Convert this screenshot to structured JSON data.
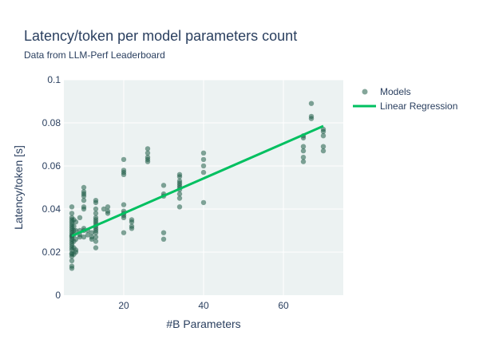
{
  "chart_data": {
    "type": "scatter",
    "title": "Latency/token per model parameters count",
    "subtitle": "Data from LLM-Perf Leaderboard",
    "xlabel": "#B Parameters",
    "ylabel": "Latency/token [s]",
    "xlim": [
      5,
      75
    ],
    "ylim": [
      0,
      0.1
    ],
    "x_ticks": [
      20,
      40,
      60
    ],
    "y_ticks": [
      0,
      0.02,
      0.04,
      0.06,
      0.08,
      0.1
    ],
    "x_tick_labels": [
      "20",
      "40",
      "60"
    ],
    "y_tick_labels": [
      "0",
      "0.02",
      "0.04",
      "0.06",
      "0.08",
      "0.1"
    ],
    "legend_position": "top-right",
    "grid": true,
    "colors": {
      "plot_bg": "#ecf2f2",
      "grid": "#ffffff",
      "models": "#1f5c47",
      "regression": "#00c060"
    },
    "series": [
      {
        "name": "Models",
        "kind": "markers",
        "points": [
          [
            7,
            0.0125
          ],
          [
            7,
            0.0135
          ],
          [
            7,
            0.016
          ],
          [
            7,
            0.018
          ],
          [
            7,
            0.019
          ],
          [
            7,
            0.0195
          ],
          [
            7,
            0.021
          ],
          [
            7,
            0.022
          ],
          [
            7,
            0.023
          ],
          [
            7,
            0.024
          ],
          [
            7,
            0.025
          ],
          [
            7,
            0.026
          ],
          [
            7,
            0.027
          ],
          [
            7,
            0.0275
          ],
          [
            7,
            0.028
          ],
          [
            7,
            0.029
          ],
          [
            7,
            0.03
          ],
          [
            7,
            0.031
          ],
          [
            7,
            0.032
          ],
          [
            7,
            0.033
          ],
          [
            7,
            0.034
          ],
          [
            7,
            0.035
          ],
          [
            7,
            0.036
          ],
          [
            7,
            0.038
          ],
          [
            7,
            0.041
          ],
          [
            7.5,
            0.019
          ],
          [
            7.5,
            0.022
          ],
          [
            7.5,
            0.025
          ],
          [
            7.5,
            0.028
          ],
          [
            7.5,
            0.03
          ],
          [
            7.5,
            0.032
          ],
          [
            7.5,
            0.035
          ],
          [
            8,
            0.02
          ],
          [
            8,
            0.021
          ],
          [
            8,
            0.026
          ],
          [
            8,
            0.03
          ],
          [
            8,
            0.034
          ],
          [
            9,
            0.027
          ],
          [
            9,
            0.028
          ],
          [
            9,
            0.03
          ],
          [
            9,
            0.036
          ],
          [
            10,
            0.027
          ],
          [
            10,
            0.03
          ],
          [
            10,
            0.031
          ],
          [
            10,
            0.04
          ],
          [
            10,
            0.041
          ],
          [
            10,
            0.044
          ],
          [
            10,
            0.046
          ],
          [
            10,
            0.047
          ],
          [
            10,
            0.048
          ],
          [
            10,
            0.05
          ],
          [
            11,
            0.028
          ],
          [
            11,
            0.03
          ],
          [
            12,
            0.026
          ],
          [
            12,
            0.027
          ],
          [
            12,
            0.029
          ],
          [
            13,
            0.022
          ],
          [
            13,
            0.025
          ],
          [
            13,
            0.027
          ],
          [
            13,
            0.029
          ],
          [
            13,
            0.03
          ],
          [
            13,
            0.031
          ],
          [
            13,
            0.032
          ],
          [
            13,
            0.033
          ],
          [
            13,
            0.034
          ],
          [
            13,
            0.035
          ],
          [
            13,
            0.036
          ],
          [
            13,
            0.038
          ],
          [
            13,
            0.04
          ],
          [
            13,
            0.043
          ],
          [
            13,
            0.044
          ],
          [
            15,
            0.04
          ],
          [
            16,
            0.038
          ],
          [
            16,
            0.039
          ],
          [
            16,
            0.041
          ],
          [
            20,
            0.029
          ],
          [
            20,
            0.036
          ],
          [
            20,
            0.037
          ],
          [
            20,
            0.038
          ],
          [
            20,
            0.039
          ],
          [
            20,
            0.042
          ],
          [
            20,
            0.056
          ],
          [
            20,
            0.057
          ],
          [
            20,
            0.058
          ],
          [
            20,
            0.063
          ],
          [
            22,
            0.031
          ],
          [
            22,
            0.032
          ],
          [
            22,
            0.034
          ],
          [
            22,
            0.035
          ],
          [
            26,
            0.062
          ],
          [
            26,
            0.063
          ],
          [
            26,
            0.064
          ],
          [
            26,
            0.066
          ],
          [
            26,
            0.068
          ],
          [
            30,
            0.026
          ],
          [
            30,
            0.029
          ],
          [
            30,
            0.046
          ],
          [
            30,
            0.047
          ],
          [
            30,
            0.051
          ],
          [
            34,
            0.041
          ],
          [
            34,
            0.045
          ],
          [
            34,
            0.047
          ],
          [
            34,
            0.049
          ],
          [
            34,
            0.05
          ],
          [
            34,
            0.051
          ],
          [
            34,
            0.052
          ],
          [
            34,
            0.053
          ],
          [
            34,
            0.055
          ],
          [
            34,
            0.056
          ],
          [
            40,
            0.043
          ],
          [
            40,
            0.057
          ],
          [
            40,
            0.06
          ],
          [
            40,
            0.063
          ],
          [
            40,
            0.066
          ],
          [
            65,
            0.062
          ],
          [
            65,
            0.064
          ],
          [
            65,
            0.067
          ],
          [
            65,
            0.069
          ],
          [
            65,
            0.073
          ],
          [
            65,
            0.074
          ],
          [
            67,
            0.082
          ],
          [
            67,
            0.083
          ],
          [
            67,
            0.089
          ],
          [
            70,
            0.067
          ],
          [
            70,
            0.069
          ],
          [
            70,
            0.074
          ],
          [
            70,
            0.076
          ],
          [
            70,
            0.077
          ]
        ]
      },
      {
        "name": "Linear Regression",
        "kind": "line",
        "x": [
          7,
          70
        ],
        "y": [
          0.0275,
          0.0785
        ]
      }
    ]
  }
}
